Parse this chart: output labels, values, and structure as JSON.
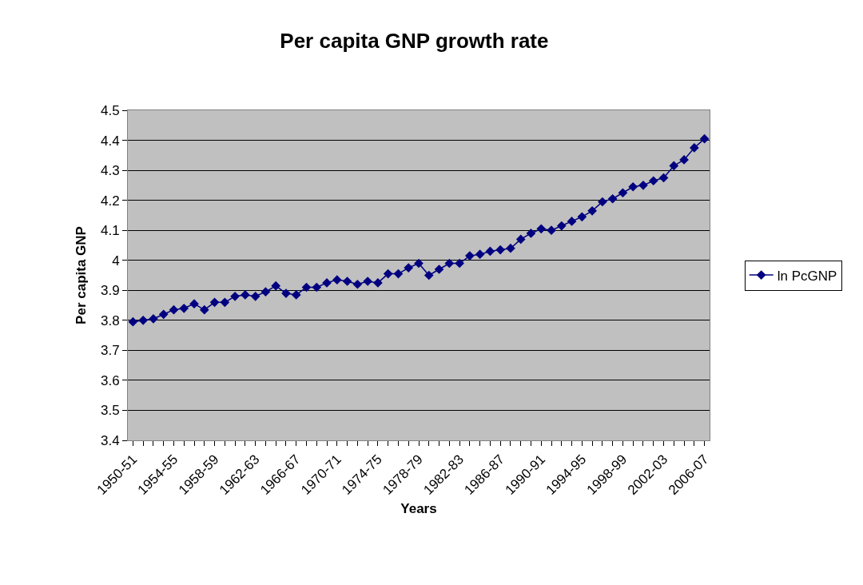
{
  "chart_data": {
    "type": "line",
    "title": "Per capita GNP growth rate",
    "xlabel": "Years",
    "ylabel": "Per capita GNP",
    "categories": [
      "1950-51",
      null,
      null,
      null,
      "1954-55",
      null,
      null,
      null,
      "1958-59",
      null,
      null,
      null,
      "1962-63",
      null,
      null,
      null,
      "1966-67",
      null,
      null,
      null,
      "1970-71",
      null,
      null,
      null,
      "1974-75",
      null,
      null,
      null,
      "1978-79",
      null,
      null,
      null,
      "1982-83",
      null,
      null,
      null,
      "1986-87",
      null,
      null,
      null,
      "1990-91",
      null,
      null,
      null,
      "1994-95",
      null,
      null,
      null,
      "1998-99",
      null,
      null,
      null,
      "2002-03",
      null,
      null,
      null,
      "2006-07"
    ],
    "series": [
      {
        "name": "ln PcGNP",
        "color": "#000080",
        "values": [
          3.795,
          3.8,
          3.805,
          3.82,
          3.835,
          3.84,
          3.855,
          3.835,
          3.86,
          3.86,
          3.88,
          3.885,
          3.88,
          3.895,
          3.915,
          3.89,
          3.885,
          3.91,
          3.91,
          3.925,
          3.935,
          3.93,
          3.92,
          3.93,
          3.925,
          3.955,
          3.955,
          3.975,
          3.99,
          3.95,
          3.97,
          3.99,
          3.99,
          4.015,
          4.02,
          4.03,
          4.035,
          4.04,
          4.07,
          4.09,
          4.105,
          4.1,
          4.115,
          4.13,
          4.145,
          4.165,
          4.195,
          4.205,
          4.225,
          4.245,
          4.25,
          4.265,
          4.275,
          4.315,
          4.335,
          4.375,
          4.405
        ]
      }
    ],
    "ylim": [
      3.4,
      4.5
    ],
    "yticks": [
      3.4,
      3.5,
      3.6,
      3.7,
      3.8,
      3.9,
      4,
      4.1,
      4.2,
      4.3,
      4.4,
      4.5
    ],
    "grid": "y",
    "legend": "right",
    "marker": "diamond",
    "line_style": "solid"
  }
}
